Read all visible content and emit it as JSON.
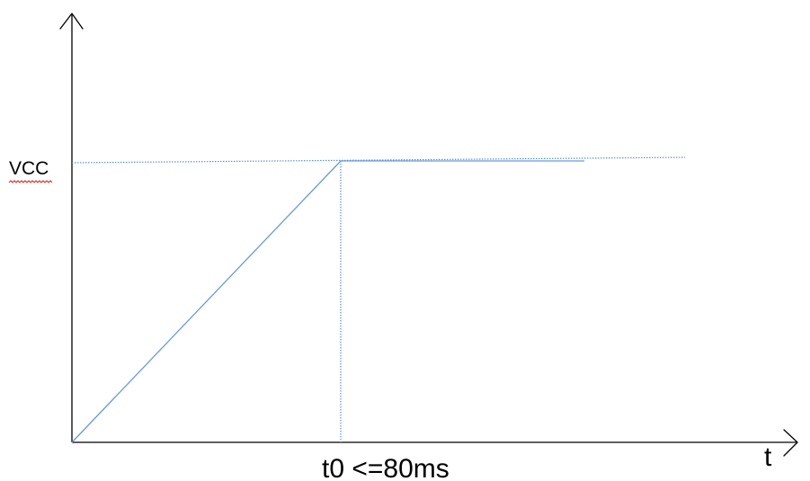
{
  "diagram": {
    "y_level_label": "VCC",
    "x_axis_label": "t",
    "time_marker_label": "t0 <=80ms"
  },
  "colors": {
    "curve": "#6a9ad9",
    "guide": "#5b8fd6",
    "axis": "#000000",
    "spellcheck_underline": "#e02020"
  }
}
